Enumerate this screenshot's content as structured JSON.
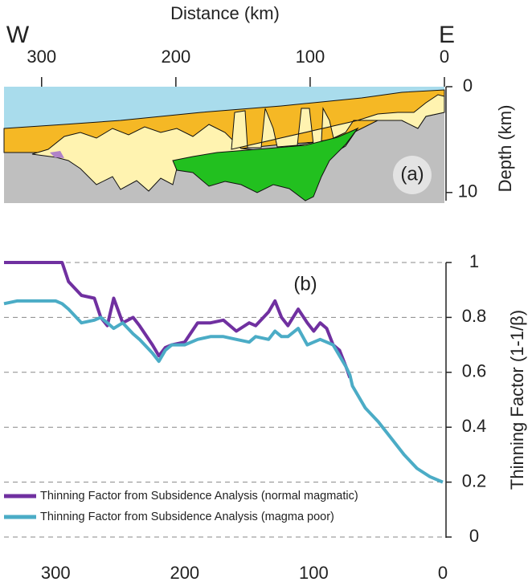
{
  "chart_data": [
    {
      "type": "section",
      "xlabel": "Distance (km)",
      "ylabel": "Depth (km)",
      "west_label": "W",
      "east_label": "E",
      "panel_label": "(a)",
      "xlim": [
        328,
        0
      ],
      "xticks": [
        300,
        200,
        100,
        0
      ],
      "ylim": [
        0,
        11
      ],
      "yticks": [
        0,
        10
      ]
    },
    {
      "type": "line",
      "panel_label": "(b)",
      "ylabel": "Thinning Factor  (1-1/β)",
      "x": [
        340,
        330,
        320,
        310,
        300,
        295,
        290,
        280,
        270,
        265,
        260,
        255,
        248,
        240,
        235,
        225,
        220,
        215,
        210,
        200,
        190,
        180,
        170,
        160,
        150,
        145,
        135,
        130,
        125,
        120,
        112,
        105,
        100,
        95,
        90,
        85,
        80,
        75,
        72,
        70,
        60,
        50,
        40,
        30,
        20,
        10,
        0
      ],
      "series": [
        {
          "name": "Thinning Factor from Subsidence Analysis (normal magmatic)",
          "color": "#7030a0",
          "values": [
            1,
            1,
            1,
            1,
            1,
            1,
            0.93,
            0.88,
            0.87,
            0.8,
            0.77,
            0.87,
            0.78,
            0.8,
            0.77,
            0.7,
            0.66,
            0.69,
            0.7,
            0.71,
            0.78,
            0.78,
            0.79,
            0.75,
            0.78,
            0.77,
            0.82,
            0.86,
            0.8,
            0.77,
            0.83,
            0.78,
            0.75,
            0.78,
            0.76,
            0.7,
            0.68,
            0.62,
            0.58,
            null,
            null,
            null,
            null,
            null,
            null,
            null,
            null
          ]
        },
        {
          "name": "Thinning Factor from Subsidence Analysis (magma poor)",
          "color": "#4bacc6",
          "values": [
            0.85,
            0.86,
            0.86,
            0.86,
            0.86,
            0.85,
            0.83,
            0.78,
            0.79,
            0.8,
            0.78,
            0.76,
            0.78,
            0.74,
            0.72,
            0.67,
            0.64,
            0.68,
            0.7,
            0.7,
            0.72,
            0.73,
            0.73,
            0.72,
            0.71,
            0.73,
            0.72,
            0.75,
            0.73,
            0.73,
            0.76,
            0.7,
            0.71,
            0.72,
            0.71,
            0.7,
            0.66,
            0.62,
            0.59,
            0.55,
            0.47,
            0.42,
            0.36,
            0.3,
            0.25,
            0.22,
            0.2
          ]
        }
      ],
      "xlim": [
        340,
        0
      ],
      "xticks": [
        300,
        200,
        100,
        0
      ],
      "ylim": [
        0,
        1
      ],
      "yticks": [
        0,
        0.2,
        0.4,
        0.6,
        0.8,
        1
      ],
      "grid": true
    }
  ]
}
